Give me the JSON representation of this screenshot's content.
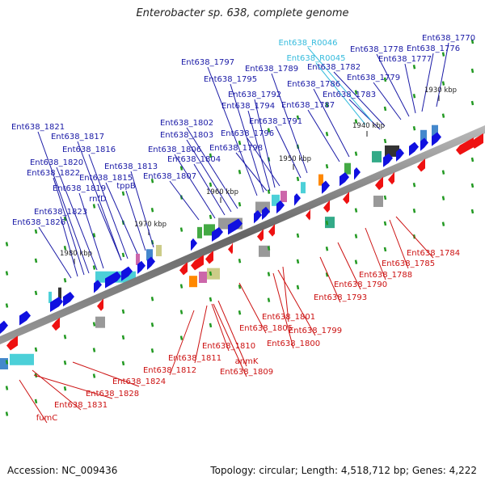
{
  "title": "Enterobacter sp. 638, complete genome",
  "footer": {
    "accession": "Accession: NC_009436",
    "summary": "Topology: circular; Length: 4,518,712 bp; Genes: 4,222"
  },
  "colors": {
    "backbone": "#777777",
    "forward_label": "#1a1aa6",
    "reverse_label": "#cc1111",
    "rna_label": "#33bbdd",
    "forward_arrow": "#1010e0",
    "reverse_arrow": "#ee1111",
    "tick": "#229922"
  },
  "scale_labels": [
    "1930 kbp",
    "1940 kbp",
    "1950 kbp",
    "1960 kbp",
    "1970 kbp",
    "1980 kbp"
  ],
  "forward_genes": [
    "Ent638_1770",
    "Ent638_1776",
    "Ent638_1777",
    "Ent638_1778",
    "Ent638_1779",
    "Ent638_1782",
    "Ent638_1783",
    "Ent638_1786",
    "Ent638_1787",
    "Ent638_1789",
    "Ent638_1791",
    "Ent638_1792",
    "Ent638_1794",
    "Ent638_1795",
    "Ent638_1796",
    "Ent638_1797",
    "Ent638_1798",
    "Ent638_1802",
    "Ent638_1803",
    "Ent638_1804",
    "Ent638_1806",
    "Ent638_1807",
    "Ent638_1813",
    "tppB",
    "Ent638_1815",
    "Ent638_1816",
    "Ent638_1817",
    "rnfD",
    "Ent638_1819",
    "Ent638_1820",
    "Ent638_1821",
    "Ent638_1822",
    "Ent638_1823",
    "Ent638_1826"
  ],
  "rna_genes": [
    "Ent638_R0046",
    "Ent638_R0045"
  ],
  "reverse_genes": [
    "Ent638_1784",
    "Ent638_1785",
    "Ent638_1788",
    "Ent638_1790",
    "Ent638_1793",
    "Ent638_1799",
    "Ent638_1800",
    "Ent638_1801",
    "Ent638_1805",
    "anmK",
    "Ent638_1809",
    "Ent638_1810",
    "Ent638_1811",
    "Ent638_1812",
    "Ent638_1824",
    "Ent638_1828",
    "Ent638_1831",
    "fumC"
  ]
}
